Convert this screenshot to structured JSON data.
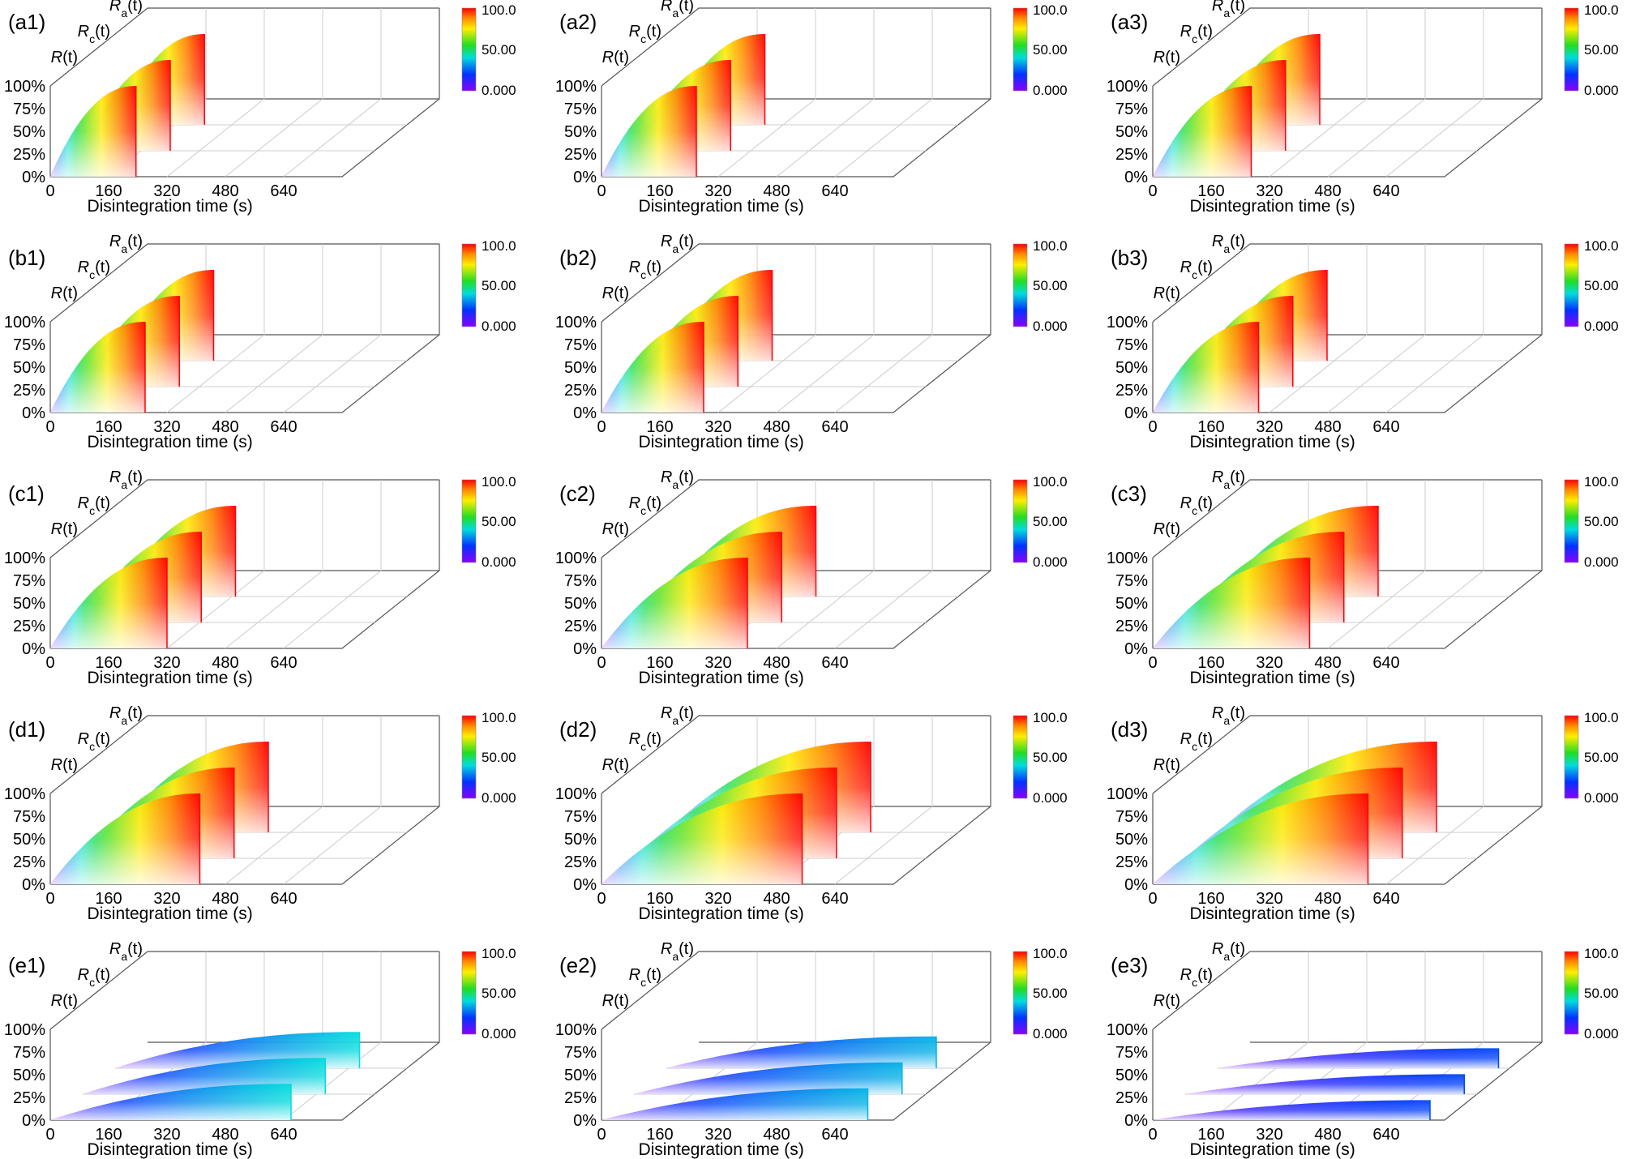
{
  "chart_data": {
    "type": "area",
    "layout": "grid 5 rows x 3 columns of 3D ribbon (waterfall) plots",
    "xlabel": "Disintegration time (s)",
    "x_ticks": [
      "0",
      "160",
      "320",
      "480",
      "640"
    ],
    "x_tick_values": [
      0,
      160,
      320,
      480,
      640
    ],
    "xlim": [
      0,
      800
    ],
    "y_ticks": [
      "0%",
      "25%",
      "50%",
      "75%",
      "100%"
    ],
    "ylim": [
      0,
      100
    ],
    "series_labels": [
      {
        "main": "R",
        "sub": "",
        "arg": "(t)"
      },
      {
        "main": "R",
        "sub": "c",
        "arg": "(t)"
      },
      {
        "main": "R",
        "sub": "a",
        "arg": "(t)"
      }
    ],
    "colorbar": {
      "min_label": "0.000",
      "mid_label": "50.00",
      "max_label": "100.0",
      "min": 0,
      "max": 100
    },
    "panels": [
      {
        "label": "(a1)",
        "end_time": [
          235,
          240,
          245
        ],
        "final": [
          100,
          100,
          100
        ]
      },
      {
        "label": "(a2)",
        "end_time": [
          260,
          265,
          270
        ],
        "final": [
          100,
          100,
          100
        ]
      },
      {
        "label": "(a3)",
        "end_time": [
          270,
          275,
          280
        ],
        "final": [
          100,
          100,
          100
        ]
      },
      {
        "label": "(b1)",
        "end_time": [
          260,
          265,
          270
        ],
        "final": [
          100,
          100,
          100
        ]
      },
      {
        "label": "(b2)",
        "end_time": [
          280,
          285,
          290
        ],
        "final": [
          100,
          100,
          100
        ]
      },
      {
        "label": "(b3)",
        "end_time": [
          290,
          295,
          300
        ],
        "final": [
          100,
          100,
          100
        ]
      },
      {
        "label": "(c1)",
        "end_time": [
          320,
          325,
          330
        ],
        "final": [
          100,
          100,
          100
        ]
      },
      {
        "label": "(c2)",
        "end_time": [
          400,
          405,
          410
        ],
        "final": [
          100,
          100,
          100
        ]
      },
      {
        "label": "(c3)",
        "end_time": [
          430,
          435,
          440
        ],
        "final": [
          100,
          100,
          100
        ]
      },
      {
        "label": "(d1)",
        "end_time": [
          410,
          415,
          420
        ],
        "final": [
          100,
          100,
          100
        ]
      },
      {
        "label": "(d2)",
        "end_time": [
          550,
          555,
          560
        ],
        "final": [
          100,
          100,
          100
        ]
      },
      {
        "label": "(d3)",
        "end_time": [
          590,
          595,
          600
        ],
        "final": [
          100,
          100,
          100
        ]
      },
      {
        "label": "(e1)",
        "end_time": [
          660,
          665,
          670
        ],
        "final": [
          40,
          40,
          40
        ]
      },
      {
        "label": "(e2)",
        "end_time": [
          730,
          735,
          740
        ],
        "final": [
          35,
          35,
          35
        ]
      },
      {
        "label": "(e3)",
        "end_time": [
          760,
          765,
          770
        ],
        "final": [
          22,
          22,
          22
        ]
      }
    ]
  }
}
